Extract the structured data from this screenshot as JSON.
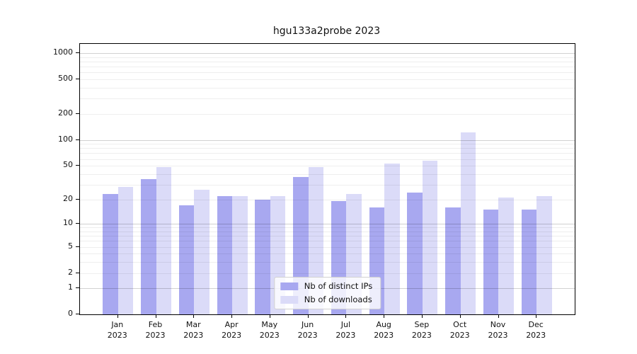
{
  "chart_data": {
    "type": "bar",
    "title": "hgu133a2probe 2023",
    "categories": [
      "Jan",
      "Feb",
      "Mar",
      "Apr",
      "May",
      "Jun",
      "Jul",
      "Aug",
      "Sep",
      "Oct",
      "Nov",
      "Dec"
    ],
    "category_year": "2023",
    "series": [
      {
        "name": "Nb of distinct IPs",
        "color": "#a8a8f0",
        "values": [
          23,
          35,
          17,
          22,
          20,
          37,
          19,
          16,
          24,
          16,
          15,
          15
        ]
      },
      {
        "name": "Nb of downloads",
        "color": "#dbdbf8",
        "values": [
          28,
          48,
          26,
          22,
          22,
          48,
          23,
          53,
          57,
          122,
          21,
          22
        ]
      }
    ],
    "yscale": "log1p",
    "ylim": [
      0,
      1274
    ],
    "yticks": [
      0,
      1,
      2,
      5,
      10,
      20,
      50,
      100,
      200,
      500,
      1000
    ],
    "grid": true,
    "legend_position": "lower center"
  }
}
